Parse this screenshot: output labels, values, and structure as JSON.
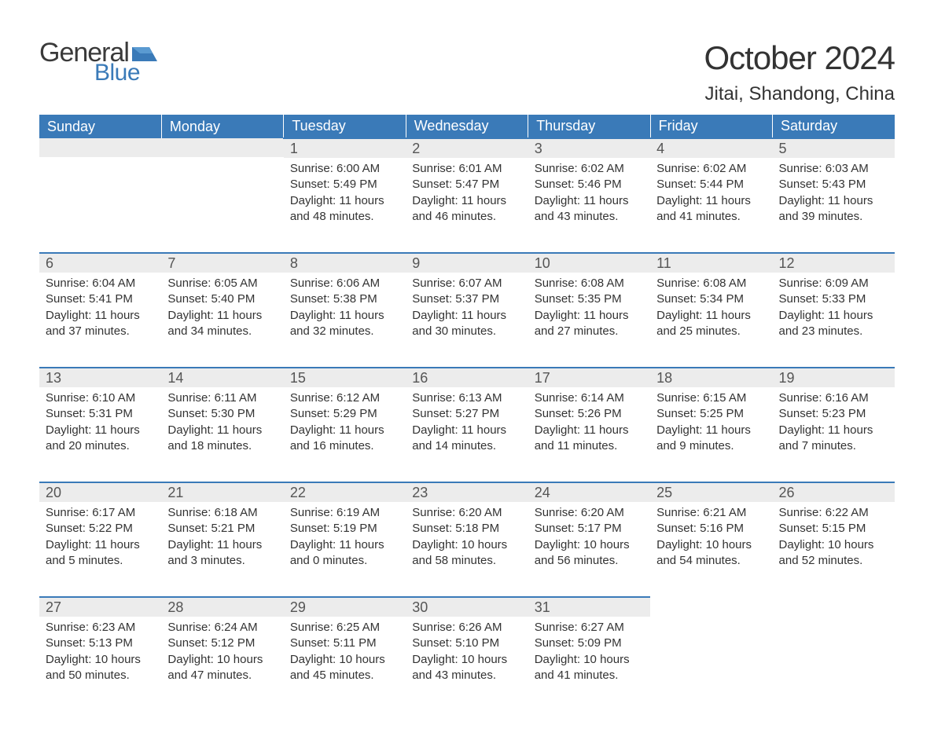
{
  "logo": {
    "general": "General",
    "blue": "Blue",
    "flag_color": "#3a7ab8"
  },
  "title": "October 2024",
  "location": "Jitai, Shandong, China",
  "colors": {
    "header_bg": "#3a7ab8",
    "header_text": "#ffffff",
    "daynum_bg": "#ececec",
    "daynum_text": "#555555",
    "body_text": "#333333",
    "row_border": "#3a7ab8"
  },
  "typography": {
    "title_fontsize": 42,
    "location_fontsize": 24,
    "weekday_fontsize": 18,
    "daynum_fontsize": 18,
    "detail_fontsize": 15
  },
  "weekdays": [
    "Sunday",
    "Monday",
    "Tuesday",
    "Wednesday",
    "Thursday",
    "Friday",
    "Saturday"
  ],
  "labels": {
    "sunrise": "Sunrise:",
    "sunset": "Sunset:",
    "daylight": "Daylight:"
  },
  "weeks": [
    [
      null,
      null,
      {
        "n": "1",
        "sunrise": "6:00 AM",
        "sunset": "5:49 PM",
        "daylight": "11 hours and 48 minutes."
      },
      {
        "n": "2",
        "sunrise": "6:01 AM",
        "sunset": "5:47 PM",
        "daylight": "11 hours and 46 minutes."
      },
      {
        "n": "3",
        "sunrise": "6:02 AM",
        "sunset": "5:46 PM",
        "daylight": "11 hours and 43 minutes."
      },
      {
        "n": "4",
        "sunrise": "6:02 AM",
        "sunset": "5:44 PM",
        "daylight": "11 hours and 41 minutes."
      },
      {
        "n": "5",
        "sunrise": "6:03 AM",
        "sunset": "5:43 PM",
        "daylight": "11 hours and 39 minutes."
      }
    ],
    [
      {
        "n": "6",
        "sunrise": "6:04 AM",
        "sunset": "5:41 PM",
        "daylight": "11 hours and 37 minutes."
      },
      {
        "n": "7",
        "sunrise": "6:05 AM",
        "sunset": "5:40 PM",
        "daylight": "11 hours and 34 minutes."
      },
      {
        "n": "8",
        "sunrise": "6:06 AM",
        "sunset": "5:38 PM",
        "daylight": "11 hours and 32 minutes."
      },
      {
        "n": "9",
        "sunrise": "6:07 AM",
        "sunset": "5:37 PM",
        "daylight": "11 hours and 30 minutes."
      },
      {
        "n": "10",
        "sunrise": "6:08 AM",
        "sunset": "5:35 PM",
        "daylight": "11 hours and 27 minutes."
      },
      {
        "n": "11",
        "sunrise": "6:08 AM",
        "sunset": "5:34 PM",
        "daylight": "11 hours and 25 minutes."
      },
      {
        "n": "12",
        "sunrise": "6:09 AM",
        "sunset": "5:33 PM",
        "daylight": "11 hours and 23 minutes."
      }
    ],
    [
      {
        "n": "13",
        "sunrise": "6:10 AM",
        "sunset": "5:31 PM",
        "daylight": "11 hours and 20 minutes."
      },
      {
        "n": "14",
        "sunrise": "6:11 AM",
        "sunset": "5:30 PM",
        "daylight": "11 hours and 18 minutes."
      },
      {
        "n": "15",
        "sunrise": "6:12 AM",
        "sunset": "5:29 PM",
        "daylight": "11 hours and 16 minutes."
      },
      {
        "n": "16",
        "sunrise": "6:13 AM",
        "sunset": "5:27 PM",
        "daylight": "11 hours and 14 minutes."
      },
      {
        "n": "17",
        "sunrise": "6:14 AM",
        "sunset": "5:26 PM",
        "daylight": "11 hours and 11 minutes."
      },
      {
        "n": "18",
        "sunrise": "6:15 AM",
        "sunset": "5:25 PM",
        "daylight": "11 hours and 9 minutes."
      },
      {
        "n": "19",
        "sunrise": "6:16 AM",
        "sunset": "5:23 PM",
        "daylight": "11 hours and 7 minutes."
      }
    ],
    [
      {
        "n": "20",
        "sunrise": "6:17 AM",
        "sunset": "5:22 PM",
        "daylight": "11 hours and 5 minutes."
      },
      {
        "n": "21",
        "sunrise": "6:18 AM",
        "sunset": "5:21 PM",
        "daylight": "11 hours and 3 minutes."
      },
      {
        "n": "22",
        "sunrise": "6:19 AM",
        "sunset": "5:19 PM",
        "daylight": "11 hours and 0 minutes."
      },
      {
        "n": "23",
        "sunrise": "6:20 AM",
        "sunset": "5:18 PM",
        "daylight": "10 hours and 58 minutes."
      },
      {
        "n": "24",
        "sunrise": "6:20 AM",
        "sunset": "5:17 PM",
        "daylight": "10 hours and 56 minutes."
      },
      {
        "n": "25",
        "sunrise": "6:21 AM",
        "sunset": "5:16 PM",
        "daylight": "10 hours and 54 minutes."
      },
      {
        "n": "26",
        "sunrise": "6:22 AM",
        "sunset": "5:15 PM",
        "daylight": "10 hours and 52 minutes."
      }
    ],
    [
      {
        "n": "27",
        "sunrise": "6:23 AM",
        "sunset": "5:13 PM",
        "daylight": "10 hours and 50 minutes."
      },
      {
        "n": "28",
        "sunrise": "6:24 AM",
        "sunset": "5:12 PM",
        "daylight": "10 hours and 47 minutes."
      },
      {
        "n": "29",
        "sunrise": "6:25 AM",
        "sunset": "5:11 PM",
        "daylight": "10 hours and 45 minutes."
      },
      {
        "n": "30",
        "sunrise": "6:26 AM",
        "sunset": "5:10 PM",
        "daylight": "10 hours and 43 minutes."
      },
      {
        "n": "31",
        "sunrise": "6:27 AM",
        "sunset": "5:09 PM",
        "daylight": "10 hours and 41 minutes."
      },
      null,
      null
    ]
  ]
}
